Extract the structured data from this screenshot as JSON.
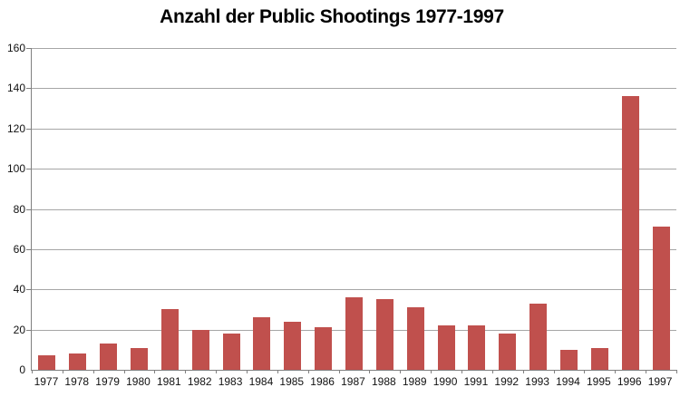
{
  "chart_data": {
    "type": "bar",
    "title": "Anzahl der Public Shootings 1977-1997",
    "categories": [
      "1977",
      "1978",
      "1979",
      "1980",
      "1981",
      "1982",
      "1983",
      "1984",
      "1985",
      "1986",
      "1987",
      "1988",
      "1989",
      "1990",
      "1991",
      "1992",
      "1993",
      "1994",
      "1995",
      "1996",
      "1997"
    ],
    "values": [
      7,
      8,
      13,
      11,
      30,
      20,
      18,
      26,
      24,
      21,
      36,
      35,
      31,
      22,
      22,
      18,
      33,
      10,
      11,
      136,
      71
    ],
    "xlabel": "",
    "ylabel": "",
    "ylim": [
      0,
      160
    ],
    "ytick_step": 20,
    "ytick_labels": [
      "0",
      "20",
      "40",
      "60",
      "80",
      "100",
      "120",
      "140",
      "160"
    ],
    "grid": true,
    "legend": "none",
    "colors": {
      "bar": "#C0504D",
      "gridline": "#A6A6A6",
      "axis": "#808080",
      "text": "#111111",
      "background": "#FFFFFF"
    }
  }
}
